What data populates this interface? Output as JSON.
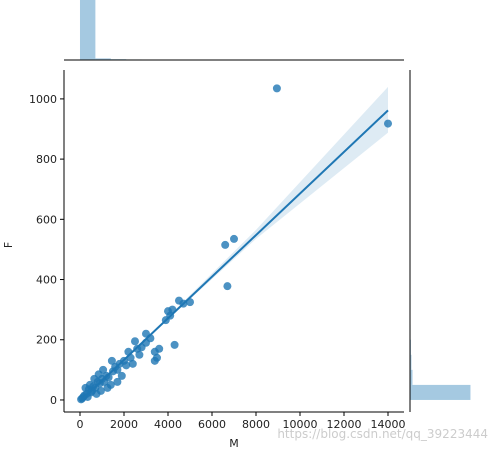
{
  "chart_data": [
    {
      "type": "scatter",
      "xlabel": "M",
      "ylabel": "F",
      "color": "#1f77b4",
      "x": [
        8950,
        14000,
        6600,
        7000,
        6700,
        4300,
        5000,
        4500,
        4200,
        3900,
        4000,
        3400,
        3400,
        3500,
        3000,
        2800,
        2500,
        2700,
        2200,
        2000,
        1800,
        1700,
        1900,
        1500,
        1200,
        1000,
        800,
        600,
        400,
        300,
        200,
        100,
        50,
        150,
        500,
        700,
        900,
        1100,
        1300,
        1400,
        1600,
        2100,
        2300,
        2600,
        3200,
        3600,
        4100,
        4700,
        250,
        350,
        450,
        550,
        650,
        750,
        850,
        950,
        1050,
        1250,
        1450,
        1700,
        2400,
        3000
      ],
      "y": [
        1035,
        918,
        515,
        535,
        378,
        183,
        325,
        330,
        300,
        265,
        295,
        160,
        130,
        140,
        220,
        175,
        195,
        150,
        160,
        130,
        120,
        100,
        80,
        95,
        80,
        70,
        60,
        45,
        35,
        20,
        15,
        5,
        2,
        10,
        25,
        40,
        55,
        60,
        75,
        50,
        110,
        115,
        140,
        170,
        205,
        170,
        280,
        320,
        40,
        10,
        50,
        30,
        70,
        20,
        85,
        30,
        100,
        40,
        130,
        60,
        120,
        190
      ],
      "regression": {
        "x": [
          0,
          14000
        ],
        "y": [
          -5,
          962
        ]
      },
      "band": {
        "x": [
          0,
          4000,
          8000,
          14000
        ],
        "lower": [
          -8,
          268,
          535,
          888
        ],
        "upper": [
          -2,
          276,
          565,
          1040
        ]
      },
      "xlim": [
        -727,
        14727
      ],
      "ylim": [
        -40,
        1096
      ],
      "xticks": [
        0,
        2000,
        4000,
        6000,
        8000,
        10000,
        12000,
        14000
      ],
      "yticks": [
        0,
        200,
        400,
        600,
        800,
        1000
      ],
      "watermark": "https://blog.csdn.net/qq_39223444"
    },
    {
      "type": "histogram",
      "color": "#1f77b4",
      "bins": [
        0,
        700,
        1400,
        2100,
        2800,
        3500,
        4200,
        4900,
        5600,
        6300,
        7000,
        7700,
        8400,
        9100,
        9800,
        10500,
        11200,
        11900,
        12600,
        13300,
        14000
      ],
      "counts": [
        450,
        12,
        6,
        4,
        3,
        2,
        2,
        1,
        0,
        2,
        1,
        0,
        1,
        0,
        0,
        0,
        0,
        0,
        0,
        1
      ],
      "ylim": [
        0,
        450
      ]
    },
    {
      "type": "histogram",
      "orientation": "horizontal",
      "color": "#1f77b4",
      "bins": [
        0,
        50,
        100,
        150,
        200,
        250,
        300,
        350,
        400,
        450,
        500,
        550,
        600,
        650,
        700,
        750,
        800,
        850,
        900,
        950,
        1000,
        1050
      ],
      "counts": [
        340,
        14,
        8,
        5,
        3,
        2,
        3,
        1,
        0,
        0,
        1,
        1,
        0,
        0,
        0,
        0,
        0,
        0,
        1,
        0,
        1
      ],
      "xlim": [
        0,
        450
      ]
    }
  ]
}
